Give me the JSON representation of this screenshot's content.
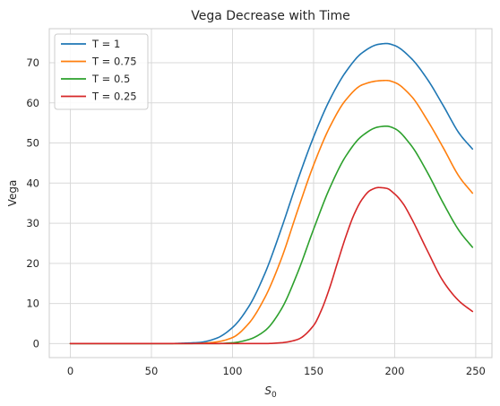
{
  "chart_data": {
    "type": "line",
    "title": "Vega Decrease with Time",
    "xlabel_base": "S",
    "xlabel_sub": "0",
    "ylabel": "Vega",
    "xlim": [
      -13,
      260
    ],
    "ylim": [
      -3.5,
      78.5
    ],
    "xticks": [
      0,
      50,
      100,
      150,
      200,
      250
    ],
    "yticks": [
      0,
      10,
      20,
      30,
      40,
      50,
      60,
      70
    ],
    "grid": true,
    "legend_position": "top-left",
    "series": [
      {
        "name": "T = 1",
        "color": "#1f77b4",
        "x": [
          0,
          60,
          70,
          80,
          90,
          100,
          110,
          120,
          130,
          140,
          150,
          160,
          170,
          180,
          190,
          195,
          200,
          210,
          220,
          230,
          240,
          248
        ],
        "y": [
          0,
          0,
          0.1,
          0.3,
          1.3,
          4.0,
          9.2,
          17.5,
          28.5,
          40.5,
          51.5,
          60.8,
          67.8,
          72.5,
          74.6,
          74.8,
          74.3,
          71.2,
          66.0,
          59.3,
          52.3,
          48.5
        ]
      },
      {
        "name": "T = 0.75",
        "color": "#ff7f0e",
        "x": [
          0,
          70,
          80,
          90,
          100,
          110,
          120,
          130,
          140,
          150,
          160,
          170,
          180,
          190,
          195,
          200,
          210,
          220,
          230,
          240,
          248
        ],
        "y": [
          0,
          0,
          0.05,
          0.4,
          1.5,
          5.0,
          11.5,
          21.0,
          33.0,
          44.5,
          54.0,
          60.8,
          64.5,
          65.5,
          65.6,
          65.1,
          61.8,
          55.8,
          48.8,
          41.5,
          37.5
        ]
      },
      {
        "name": "T = 0.5",
        "color": "#2ca02c",
        "x": [
          0,
          90,
          100,
          110,
          120,
          130,
          140,
          150,
          160,
          170,
          180,
          190,
          195,
          200,
          210,
          220,
          230,
          240,
          248
        ],
        "y": [
          0,
          0,
          0.2,
          1.0,
          3.2,
          8.5,
          17.5,
          28.5,
          38.8,
          46.8,
          51.8,
          54.0,
          54.2,
          53.6,
          49.5,
          42.8,
          35.0,
          28.0,
          24.0
        ]
      },
      {
        "name": "T = 0.25",
        "color": "#d62728",
        "x": [
          0,
          120,
          130,
          140,
          150,
          155,
          160,
          165,
          170,
          175,
          180,
          185,
          190,
          195,
          200,
          205,
          210,
          220,
          230,
          240,
          248
        ],
        "y": [
          0,
          0,
          0.2,
          1.0,
          4.5,
          8.5,
          14.0,
          20.5,
          26.8,
          32.2,
          36.0,
          38.2,
          38.9,
          38.7,
          37.3,
          35.0,
          31.5,
          23.3,
          15.5,
          10.5,
          8.0
        ]
      }
    ]
  }
}
